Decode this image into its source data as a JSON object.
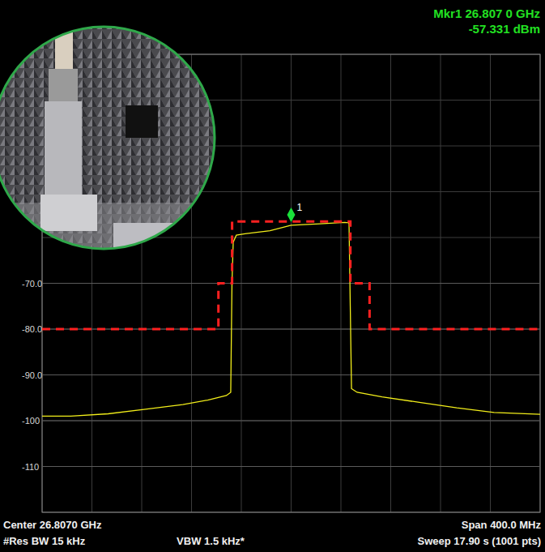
{
  "chart_data": {
    "type": "line",
    "xlim": [
      26.607,
      27.007
    ],
    "ylim": [
      -120,
      -20
    ],
    "yticks": [
      {
        "value": -70,
        "label": "-70.0"
      },
      {
        "value": -80,
        "label": "-80.0"
      },
      {
        "value": -90,
        "label": "-90.0"
      },
      -100,
      -110
    ],
    "tick_labels": "y",
    "grid": true,
    "annotations": {
      "center": "Center 26.8070 GHz",
      "rbw": "#Res BW 15 kHz",
      "vbw": "VBW 1.5 kHz*",
      "span": "Span 400.0 MHz",
      "sweep": "Sweep 17.90 s (1001 pts)"
    },
    "series": [
      {
        "color": "#f2ee1a",
        "line_style": "solid",
        "x": [
          26.607,
          26.63,
          26.66,
          26.69,
          26.72,
          26.74,
          26.755,
          26.7585,
          26.7595,
          26.7605,
          26.763,
          26.77,
          26.79,
          26.807,
          26.83,
          26.85,
          26.8535,
          26.8545,
          26.8555,
          26.86,
          26.88,
          26.91,
          26.94,
          26.97,
          27.007
        ],
        "values": [
          -99.0,
          -99.0,
          -98.5,
          -97.5,
          -96.5,
          -95.5,
          -94.5,
          -93.8,
          -70.0,
          -61.0,
          -59.5,
          -59.2,
          -58.5,
          -57.331,
          -57.0,
          -56.7,
          -56.8,
          -75.0,
          -93.0,
          -93.8,
          -94.8,
          -96.0,
          -97.2,
          -98.2,
          -98.6
        ]
      },
      {
        "color": "#ff2020",
        "line_style": "dashed",
        "x": [
          26.607,
          26.7486,
          26.7486,
          26.7596,
          26.7596,
          26.8546,
          26.8546,
          26.87,
          26.87,
          27.007
        ],
        "values": [
          -80,
          -80,
          -70,
          -70,
          -56.5,
          -56.5,
          -70,
          -70,
          -80,
          -80
        ]
      }
    ],
    "markers": [
      {
        "label": "1",
        "x": 26.807,
        "y": -57.331,
        "text": "Mkr1 26.807 0 GHz",
        "value_text": "-57.331 dBm"
      }
    ]
  }
}
